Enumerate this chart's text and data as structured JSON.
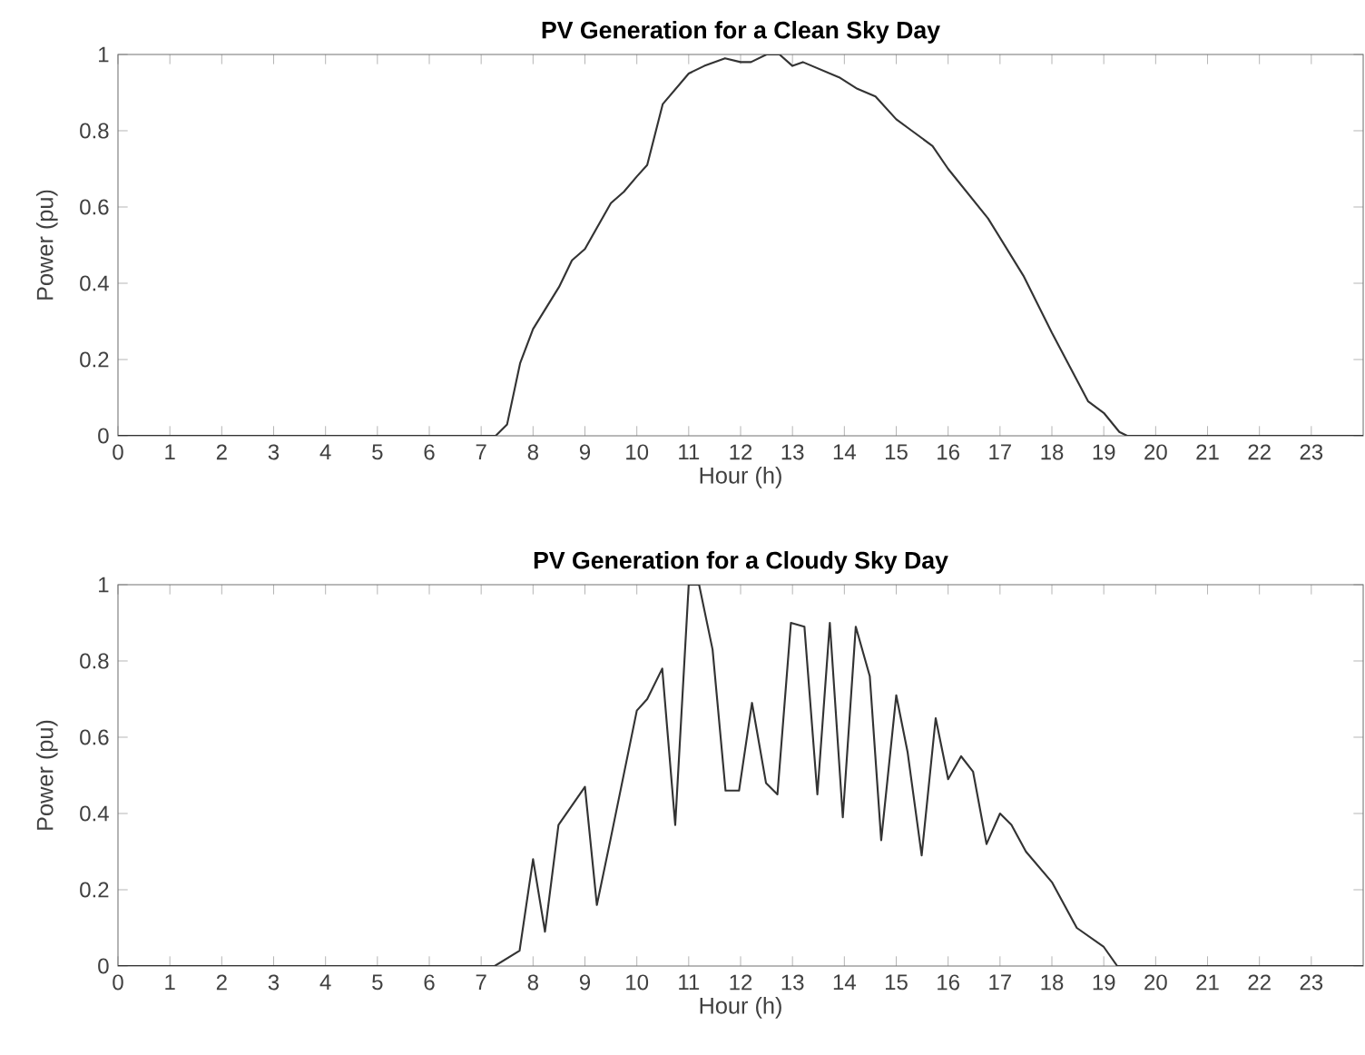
{
  "chart_data": [
    {
      "type": "line",
      "title": "PV Generation for a Clean Sky Day",
      "xlabel": "Hour (h)",
      "ylabel": "Power (pu)",
      "color": "#333333",
      "xlim": [
        0,
        24
      ],
      "ylim": [
        0,
        1
      ],
      "xticks": [
        0,
        1,
        2,
        3,
        4,
        5,
        6,
        7,
        8,
        9,
        10,
        11,
        12,
        13,
        14,
        15,
        16,
        17,
        18,
        19,
        20,
        21,
        22,
        23
      ],
      "yticks": [
        0,
        0.2,
        0.4,
        0.6,
        0.8,
        1
      ],
      "x": [
        0,
        7.28,
        7.5,
        7.75,
        8.0,
        8.5,
        8.75,
        9.0,
        9.25,
        9.5,
        9.75,
        10.0,
        10.2,
        10.5,
        11.0,
        11.3,
        11.7,
        12.0,
        12.2,
        12.5,
        12.75,
        13.0,
        13.2,
        13.9,
        14.25,
        14.6,
        15.0,
        15.3,
        15.7,
        16.0,
        16.77,
        17.45,
        18.0,
        18.7,
        19.0,
        19.3,
        19.45,
        24
      ],
      "values": [
        0,
        0,
        0.03,
        0.19,
        0.28,
        0.39,
        0.46,
        0.49,
        0.55,
        0.61,
        0.64,
        0.68,
        0.71,
        0.87,
        0.95,
        0.97,
        0.99,
        0.98,
        0.98,
        1.0,
        1.0,
        0.97,
        0.98,
        0.94,
        0.91,
        0.89,
        0.83,
        0.8,
        0.76,
        0.7,
        0.57,
        0.42,
        0.27,
        0.09,
        0.06,
        0.01,
        0,
        0
      ]
    },
    {
      "type": "line",
      "title": "PV Generation for a Cloudy Sky Day",
      "xlabel": "Hour (h)",
      "ylabel": "Power (pu)",
      "color": "#333333",
      "xlim": [
        0,
        24
      ],
      "ylim": [
        0,
        1
      ],
      "xticks": [
        0,
        1,
        2,
        3,
        4,
        5,
        6,
        7,
        8,
        9,
        10,
        11,
        12,
        13,
        14,
        15,
        16,
        17,
        18,
        19,
        20,
        21,
        22,
        23
      ],
      "yticks": [
        0,
        0.2,
        0.4,
        0.6,
        0.8,
        1
      ],
      "x": [
        0,
        7.26,
        7.74,
        8.0,
        8.23,
        8.49,
        9.0,
        9.23,
        9.49,
        10.0,
        10.2,
        10.49,
        10.74,
        11.0,
        11.2,
        11.46,
        11.71,
        11.97,
        12.22,
        12.49,
        12.71,
        12.97,
        13.23,
        13.48,
        13.72,
        13.97,
        14.22,
        14.49,
        14.71,
        15.0,
        15.22,
        15.49,
        15.76,
        16.0,
        16.25,
        16.48,
        16.74,
        17.0,
        17.22,
        17.5,
        18.0,
        18.48,
        19.0,
        19.26,
        24
      ],
      "values": [
        0,
        0,
        0.04,
        0.28,
        0.09,
        0.37,
        0.47,
        0.16,
        0.33,
        0.67,
        0.7,
        0.78,
        0.37,
        1.0,
        1.0,
        0.83,
        0.46,
        0.46,
        0.69,
        0.48,
        0.45,
        0.9,
        0.89,
        0.45,
        0.9,
        0.39,
        0.89,
        0.76,
        0.33,
        0.71,
        0.56,
        0.29,
        0.65,
        0.49,
        0.55,
        0.51,
        0.32,
        0.4,
        0.37,
        0.3,
        0.22,
        0.1,
        0.05,
        0,
        0
      ]
    }
  ]
}
